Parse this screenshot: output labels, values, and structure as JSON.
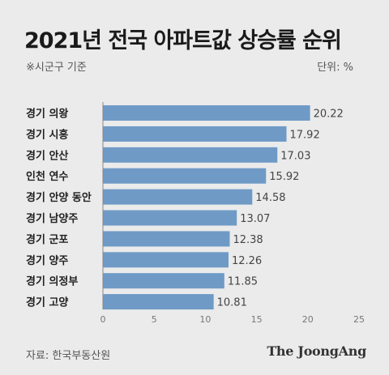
{
  "title": "2021년 전국 아파트값 상승률 순위",
  "note": "※시군구 기준",
  "unit": "단위: %",
  "source": "자료: 한국부동산원",
  "logo": "The JoongAng",
  "colors": {
    "bar": "#6f9ac6",
    "background": "#ebebeb",
    "axis": "#888888"
  },
  "chart_data": {
    "type": "bar",
    "orientation": "horizontal",
    "categories": [
      "경기 의왕",
      "경기 시흥",
      "경기 안산",
      "인천 연수",
      "경기 안양 동안",
      "경기 남양주",
      "경기 군포",
      "경기 양주",
      "경기 의정부",
      "경기 고양"
    ],
    "values": [
      20.22,
      17.92,
      17.03,
      15.92,
      14.58,
      13.07,
      12.38,
      12.26,
      11.85,
      10.81
    ],
    "value_labels": [
      "20.22",
      "17.92",
      "17.03",
      "15.92",
      "14.58",
      "13.07",
      "12.38",
      "12.26",
      "11.85",
      "10.81"
    ],
    "xlim": [
      0,
      25
    ],
    "xticks": [
      "0",
      "5",
      "10",
      "15",
      "20",
      "25"
    ],
    "xtick_values": [
      0,
      5,
      10,
      15,
      20,
      25
    ],
    "grid": false
  }
}
